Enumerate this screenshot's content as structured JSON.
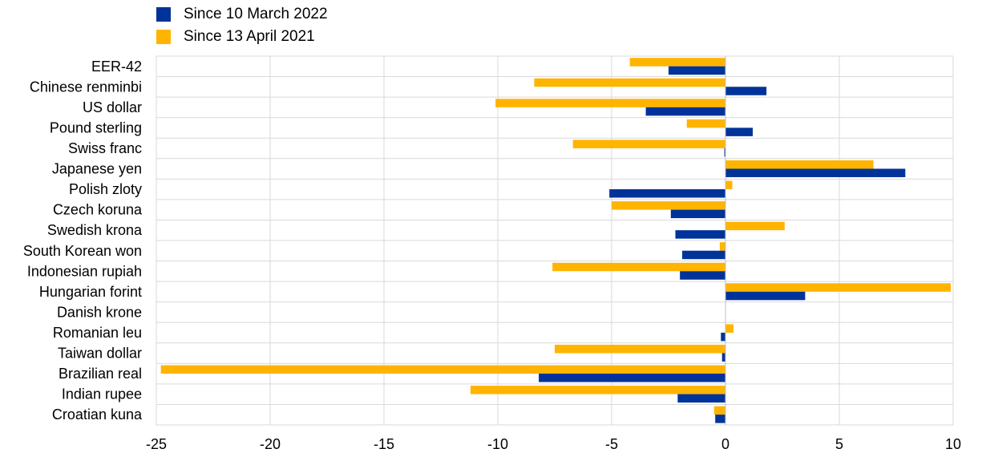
{
  "chart_data": {
    "type": "bar",
    "orientation": "horizontal",
    "categories": [
      "EER-42",
      "Chinese renminbi",
      "US dollar",
      "Pound sterling",
      "Swiss franc",
      "Japanese yen",
      "Polish zloty",
      "Czech koruna",
      "Swedish krona",
      "South Korean won",
      "Indonesian rupiah",
      "Hungarian forint",
      "Danish krone",
      "Romanian leu",
      "Taiwan dollar",
      "Brazilian real",
      "Indian rupee",
      "Croatian kuna"
    ],
    "series": [
      {
        "name": "Since 10 March 2022",
        "color": "#003399",
        "values": [
          -2.5,
          1.8,
          -3.5,
          1.2,
          -0.05,
          7.9,
          -5.1,
          -2.4,
          -2.2,
          -1.9,
          -2.0,
          3.5,
          0.0,
          -0.2,
          -0.15,
          -8.2,
          -2.1,
          -0.45
        ]
      },
      {
        "name": "Since 13 April 2021",
        "color": "#FFB400",
        "values": [
          -4.2,
          -8.4,
          -10.1,
          -1.7,
          -6.7,
          6.5,
          0.3,
          -5.0,
          2.6,
          -0.25,
          -7.6,
          9.9,
          0.0,
          0.35,
          -7.5,
          -24.8,
          -11.2,
          -0.5
        ]
      }
    ],
    "xlim": [
      -25,
      10
    ],
    "xticks": [
      -25,
      -20,
      -15,
      -10,
      -5,
      0,
      5,
      10
    ],
    "grid": true,
    "legend_position": "top-left"
  }
}
